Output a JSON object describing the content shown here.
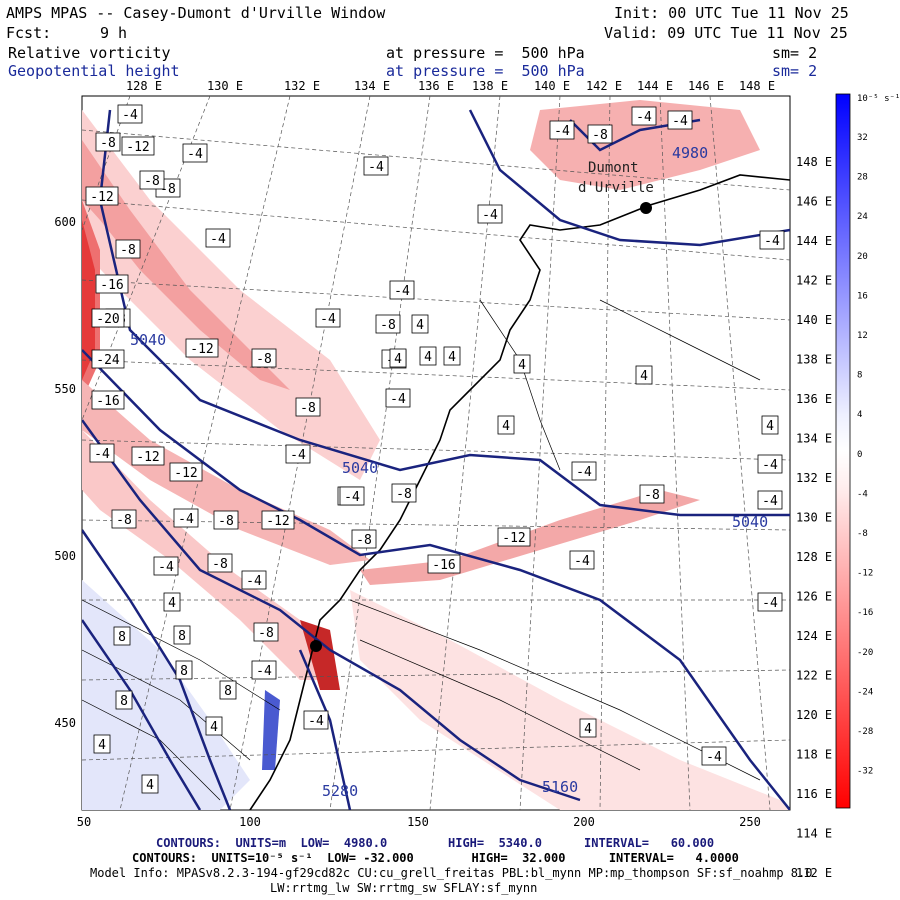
{
  "header": {
    "title": "AMPS MPAS -- Casey-Dumont d'Urville Window",
    "init": "Init: 00 UTC Tue 11 Nov 25",
    "fcst_label": "Fcst:",
    "fcst_value": "9 h",
    "valid": "Valid: 09 UTC Tue 11 Nov 25",
    "field1": "Relative vorticity",
    "field1_level": "at pressure =  500 hPa",
    "field1_sm": "sm= 2",
    "field2": "Geopotential height",
    "field2_level": "at pressure =  500 hPa",
    "field2_sm": "sm= 2"
  },
  "axes": {
    "top_lon": [
      "128 E",
      "130 E",
      "132 E",
      "134 E",
      "136 E",
      "138 E",
      "140 E",
      "142 E",
      "144 E",
      "146 E",
      "148 E"
    ],
    "right_lon": [
      "148 E",
      "146 E",
      "144 E",
      "142 E",
      "140 E",
      "138 E",
      "136 E",
      "134 E",
      "132 E",
      "130 E",
      "128 E",
      "126 E",
      "124 E",
      "122 E",
      "120 E",
      "118 E",
      "116 E",
      "114 E",
      "112 E"
    ],
    "x_ticks": [
      "50",
      "100",
      "150",
      "200",
      "250"
    ],
    "y_ticks": [
      "600",
      "550",
      "500",
      "450"
    ]
  },
  "colorbar": {
    "unit": "10⁻⁵ s⁻¹",
    "labels": [
      "32",
      "28",
      "24",
      "20",
      "16",
      "12",
      "8",
      "4",
      "0",
      "-4",
      "-8",
      "-12",
      "-16",
      "-20",
      "-24",
      "-28",
      "-32"
    ]
  },
  "map_labels": {
    "place": [
      "Dumont",
      "d'Urville"
    ],
    "height_labels": [
      "5040",
      "5040",
      "5040",
      "4980",
      "5160",
      "5280"
    ],
    "vort_boxes": [
      "-4",
      "-8",
      "-4",
      "-8",
      "-12",
      "-4",
      "-8",
      "-12",
      "-8",
      "-16",
      "-4",
      "-8",
      "-20",
      "-24",
      "-4",
      "-12",
      "-8",
      "-16",
      "-8",
      "-8",
      "-12",
      "-4",
      "-8",
      "-4",
      "-12",
      "-8",
      "-4",
      "-8",
      "-12",
      "-4",
      "-8",
      "-8",
      "-4",
      "-4",
      "-4",
      "-8",
      "-16",
      "-12",
      "-4",
      "-4",
      "-8",
      "4",
      "4",
      "4",
      "4",
      "4",
      "4",
      "8",
      "8",
      "8",
      "8",
      "8",
      "4",
      "4",
      "4",
      "4",
      "-4",
      "-4",
      "-4",
      "-4",
      "-4",
      "-4",
      "-4",
      "-4",
      "-8",
      "-4",
      "4",
      "4",
      "4",
      "-4",
      "-4",
      "-8",
      "-8",
      "-4"
    ]
  },
  "footer": {
    "line1_a": "CONTOURS:  UNITS=m  LOW=  4980.0",
    "line1_b": "HIGH=  5340.0",
    "line1_c": "INTERVAL=   60.000",
    "line2": "CONTOURS:  UNITS=10⁻⁵ s⁻¹  LOW= -32.000        HIGH=  32.000      INTERVAL=   4.0000",
    "line3": "Model Info: MPASv8.2.3-194-gf29cd82c CU:cu_grell_freitas PBL:bl_mynn MP:mp_thompson SF:sf_noahmp 8.0",
    "line4": "LW:rrtmg_lw SW:rrtmg_sw SFLAY:sf_mynn"
  },
  "colors": {
    "height_contour": "#1a237e",
    "neg_vort": "#e53935",
    "pos_vort": "#3949ab"
  }
}
